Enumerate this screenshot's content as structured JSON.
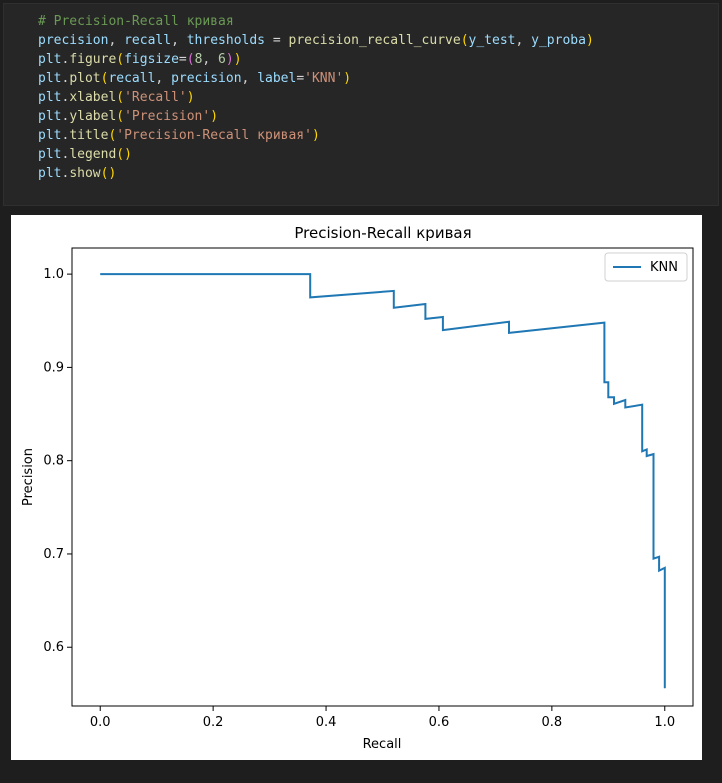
{
  "code": {
    "comment": "# Precision-Recall кривая",
    "lines": [
      "precision, recall, thresholds = precision_recall_curve(y_test, y_proba)",
      "plt.figure(figsize=(8, 6))",
      "plt.plot(recall, precision, label='KNN')",
      "plt.xlabel('Recall')",
      "plt.ylabel('Precision')",
      "plt.title('Precision-Recall кривая')",
      "plt.legend()",
      "plt.show()"
    ]
  },
  "chart_data": {
    "type": "line",
    "title": "Precision-Recall кривая",
    "xlabel": "Recall",
    "ylabel": "Precision",
    "xlim": [
      -0.05,
      1.05
    ],
    "ylim": [
      0.537,
      1.028
    ],
    "xticks": [
      0.0,
      0.2,
      0.4,
      0.6,
      0.8,
      1.0
    ],
    "xtick_labels": [
      "0.0",
      "0.2",
      "0.4",
      "0.6",
      "0.8",
      "1.0"
    ],
    "yticks": [
      0.6,
      0.7,
      0.8,
      0.9,
      1.0
    ],
    "ytick_labels": [
      "0.6",
      "0.7",
      "0.8",
      "0.9",
      "1.0"
    ],
    "legend_position": "upper-right",
    "series": [
      {
        "name": "KNN",
        "color": "#1f77b4",
        "x": [
          0.0,
          0.372,
          0.372,
          0.52,
          0.52,
          0.576,
          0.576,
          0.607,
          0.607,
          0.724,
          0.724,
          0.893,
          0.893,
          0.9,
          0.9,
          0.91,
          0.91,
          0.93,
          0.93,
          0.96,
          0.96,
          0.968,
          0.968,
          0.98,
          0.98,
          0.99,
          0.99,
          1.0,
          1.0
        ],
        "y": [
          1.0,
          1.0,
          0.975,
          0.982,
          0.964,
          0.968,
          0.952,
          0.954,
          0.94,
          0.949,
          0.937,
          0.948,
          0.884,
          0.884,
          0.868,
          0.868,
          0.861,
          0.865,
          0.857,
          0.86,
          0.81,
          0.812,
          0.805,
          0.807,
          0.695,
          0.697,
          0.682,
          0.685,
          0.556
        ]
      }
    ]
  }
}
